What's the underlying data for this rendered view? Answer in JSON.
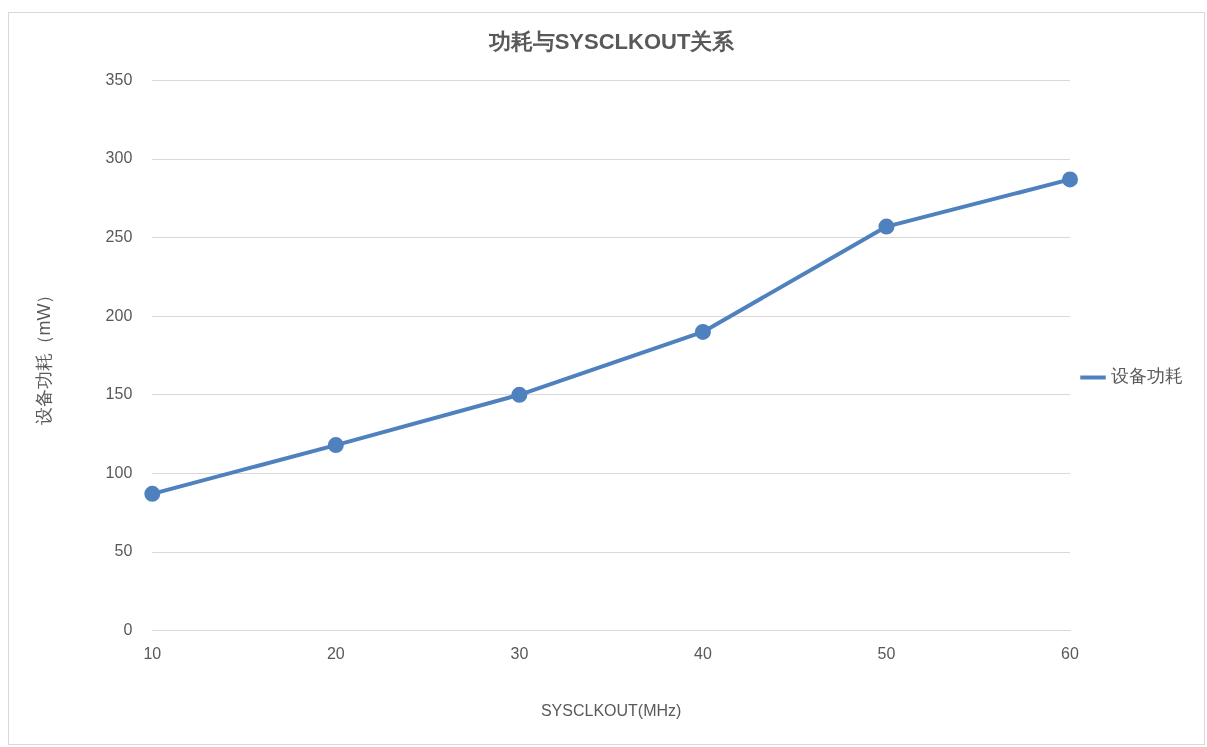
{
  "chart_data": {
    "type": "line",
    "title": "功耗与SYSCLKOUT关系",
    "xlabel": "SYSCLKOUT(MHz)",
    "ylabel": "设备功耗（mW）",
    "categories": [
      "10",
      "20",
      "30",
      "40",
      "50",
      "60"
    ],
    "series": [
      {
        "name": "设备功耗",
        "color": "#4e81bd",
        "values": [
          87,
          118,
          150,
          190,
          257,
          287
        ]
      }
    ],
    "ylim": [
      0,
      350
    ],
    "yticks": [
      0,
      50,
      100,
      150,
      200,
      250,
      300,
      350
    ],
    "grid": "y",
    "legend": "right",
    "marker": "circle",
    "line_style": "solid"
  }
}
